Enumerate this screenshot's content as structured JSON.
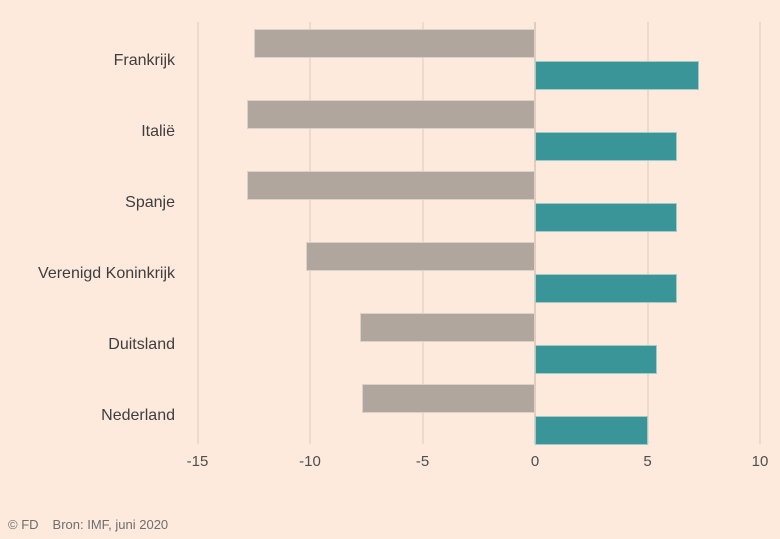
{
  "chart_data": {
    "type": "bar",
    "orientation": "horizontal",
    "title": "",
    "xlabel": "",
    "ylabel": "",
    "categories": [
      "Frankrijk",
      "Italië",
      "Spanje",
      "Verenigd Koninkrijk",
      "Duitsland",
      "Nederland"
    ],
    "series": [
      {
        "name": "gray-left-bars",
        "color": "#b1a69d",
        "values": [
          -12.5,
          -12.8,
          -12.8,
          -10.2,
          -7.8,
          -7.7
        ]
      },
      {
        "name": "teal-right-bars",
        "color": "#399598",
        "values": [
          7.3,
          6.3,
          6.3,
          6.3,
          5.4,
          5.0
        ]
      }
    ],
    "x_ticks": [
      -15,
      -10,
      -5,
      0,
      5,
      10
    ],
    "xlim": [
      -15,
      10
    ],
    "grid": "vertical-only",
    "legend": "none"
  },
  "footer": {
    "copyright": "© FD",
    "source": "Bron: IMF, juni 2020"
  },
  "colors": {
    "background": "#fdeadd",
    "gridline": "#eed9cb",
    "bar_gray": "#b1a69d",
    "bar_teal": "#399598",
    "label_text": "#3e3e3e",
    "axis_text": "#4e4e4e",
    "footer_text": "#6e6e6e"
  }
}
